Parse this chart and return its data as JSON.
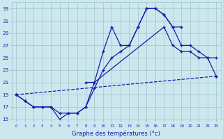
{
  "xlabel": "Graphe des températures (°c)",
  "bg_color": "#cce8ee",
  "line_color": "#1a1aaa",
  "ylim": [
    15,
    34
  ],
  "yticks": [
    15,
    17,
    19,
    21,
    23,
    25,
    27,
    29,
    31,
    33
  ],
  "xlim": [
    -0.5,
    23.5
  ],
  "line1_x": [
    0,
    1,
    2,
    3,
    4,
    5,
    6,
    7,
    8,
    9,
    10,
    11,
    12,
    13,
    14,
    15,
    16,
    17,
    18,
    19
  ],
  "line1_y": [
    19,
    18,
    17,
    17,
    17,
    16,
    16,
    16,
    17,
    20,
    23,
    25,
    26,
    27,
    30,
    33,
    33,
    32,
    30,
    30
  ],
  "line2_x": [
    0,
    1,
    2,
    3,
    4,
    5,
    6,
    7,
    8,
    9,
    10,
    11,
    12,
    13,
    14,
    15,
    16,
    17,
    18,
    19,
    20,
    21,
    22,
    23
  ],
  "line2_y": [
    19,
    18,
    17,
    17,
    17,
    15,
    16,
    16,
    17,
    21,
    26,
    30,
    27,
    27,
    30,
    33,
    33,
    32,
    30,
    27,
    27,
    26,
    25,
    25
  ],
  "line3_x": [
    8,
    9,
    17,
    18,
    19,
    20,
    21,
    22,
    23
  ],
  "line3_y": [
    21,
    21,
    30,
    27,
    26,
    26,
    25,
    25,
    22
  ],
  "line4_x": [
    0,
    23
  ],
  "line4_y": [
    19,
    22
  ]
}
